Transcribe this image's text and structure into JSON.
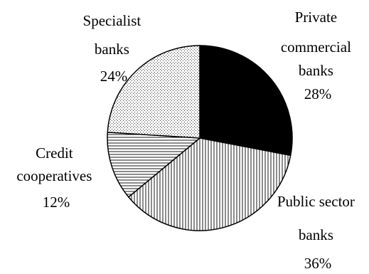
{
  "chart_data": {
    "type": "pie",
    "slices": [
      {
        "key": "private",
        "label_lines": [
          "Private",
          "commercial",
          "banks"
        ],
        "percent_label": "28%",
        "value": 28,
        "pattern": "solid-black"
      },
      {
        "key": "public",
        "label_lines": [
          "Public sector",
          "banks"
        ],
        "percent_label": "36%",
        "value": 36,
        "pattern": "vertical-hatch"
      },
      {
        "key": "credit",
        "label_lines": [
          "Credit",
          "cooperatives"
        ],
        "percent_label": "12%",
        "value": 12,
        "pattern": "horizontal-hatch"
      },
      {
        "key": "specialist",
        "label_lines": [
          "Specialist",
          "banks"
        ],
        "percent_label": "24%",
        "value": 24,
        "pattern": "dotted"
      }
    ],
    "start_angle_deg": 0,
    "direction": "clockwise",
    "colors": {
      "stroke": "#000000",
      "background": "#ffffff"
    }
  }
}
